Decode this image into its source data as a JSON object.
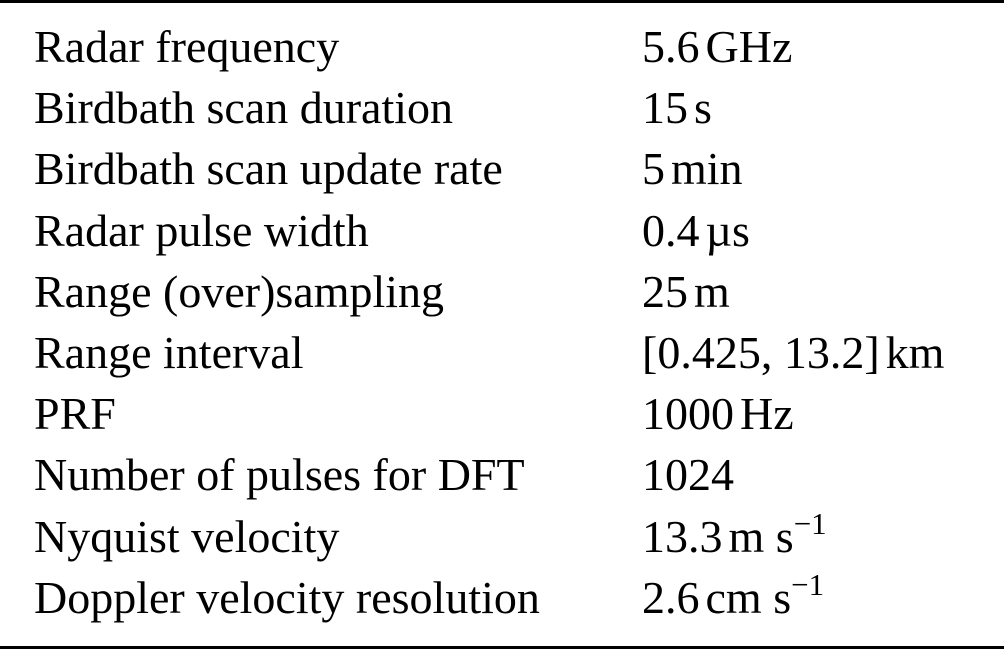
{
  "table": {
    "rows": [
      {
        "parameter": "Radar frequency",
        "value": "5.6",
        "unit": "GHz",
        "exponent": ""
      },
      {
        "parameter": "Birdbath scan duration",
        "value": "15",
        "unit": "s",
        "exponent": ""
      },
      {
        "parameter": "Birdbath scan update rate",
        "value": "5",
        "unit": "min",
        "exponent": ""
      },
      {
        "parameter": "Radar pulse width",
        "value": "0.4",
        "unit": "µs",
        "exponent": ""
      },
      {
        "parameter": "Range (over)sampling",
        "value": "25",
        "unit": "m",
        "exponent": ""
      },
      {
        "parameter": "Range interval",
        "value": "[0.425, 13.2]",
        "unit": "km",
        "exponent": ""
      },
      {
        "parameter": "PRF",
        "value": "1000",
        "unit": "Hz",
        "exponent": ""
      },
      {
        "parameter": "Number of pulses for DFT",
        "value": "1024",
        "unit": "",
        "exponent": ""
      },
      {
        "parameter": "Nyquist velocity",
        "value": "13.3",
        "unit": "m s",
        "exponent": "−1"
      },
      {
        "parameter": "Doppler velocity resolution",
        "value": "2.6",
        "unit": "cm s",
        "exponent": "−1"
      }
    ]
  }
}
